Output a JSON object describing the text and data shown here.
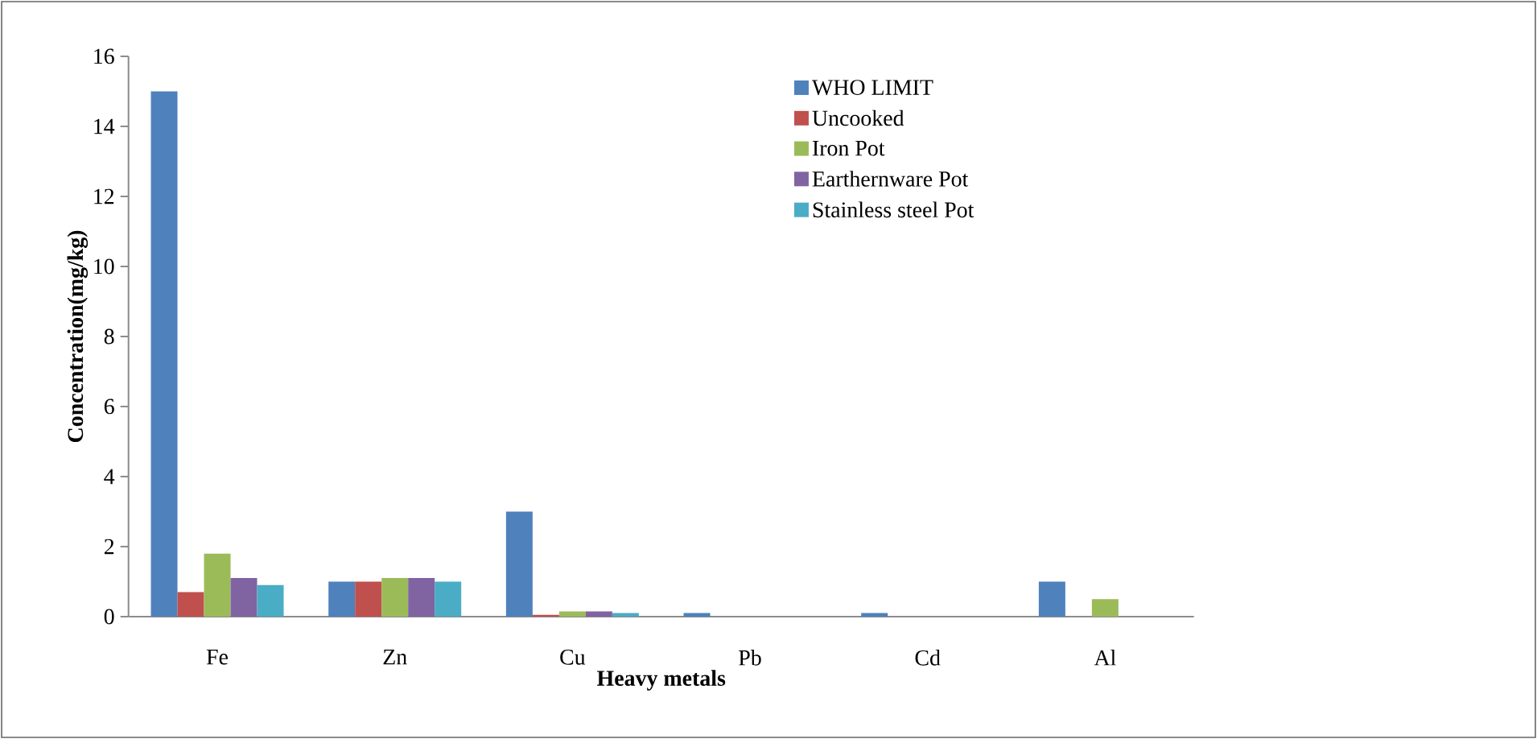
{
  "chart_data": {
    "type": "bar",
    "xlabel": "Heavy metals",
    "ylabel": "Concentration(mg/kg)",
    "categories": [
      "Fe",
      "Zn",
      "Cu",
      "Pb",
      "Cd",
      "Al"
    ],
    "series": [
      {
        "name": "WHO LIMIT",
        "color": "#4f81bd",
        "values": [
          15,
          1,
          3,
          0.1,
          0.1,
          1
        ]
      },
      {
        "name": "Uncooked",
        "color": "#c0504d",
        "values": [
          0.7,
          1,
          0.05,
          0,
          0,
          0
        ]
      },
      {
        "name": "Iron Pot",
        "color": "#9bbb59",
        "values": [
          1.8,
          1.1,
          0.15,
          0,
          0,
          0.5
        ]
      },
      {
        "name": "Earthernware Pot",
        "color": "#8064a2",
        "values": [
          1.1,
          1.1,
          0.15,
          0,
          0,
          0
        ]
      },
      {
        "name": "Stainless steel Pot",
        "color": "#4bacc6",
        "values": [
          0.9,
          1,
          0.1,
          0,
          0,
          0
        ]
      }
    ],
    "ylim": [
      0,
      16
    ],
    "yticks": [
      0,
      2,
      4,
      6,
      8,
      10,
      12,
      14,
      16
    ],
    "grid": false,
    "legend": "top right"
  }
}
